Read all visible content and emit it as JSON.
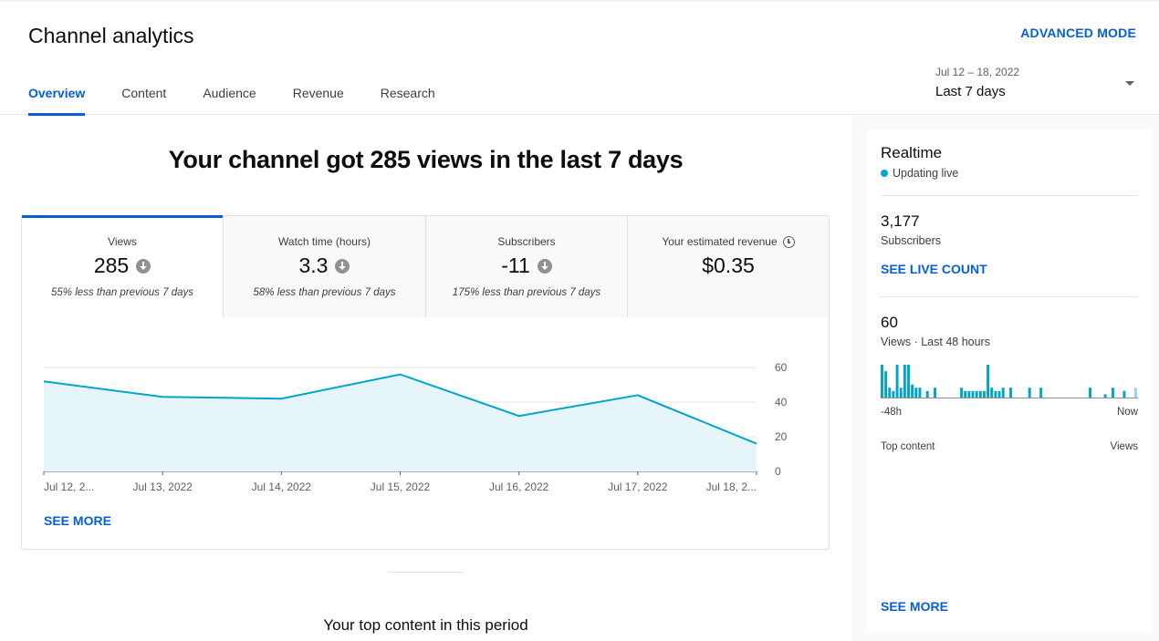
{
  "header": {
    "title": "Channel analytics",
    "advanced_mode": "ADVANCED MODE",
    "tabs": [
      {
        "label": "Overview",
        "active": true
      },
      {
        "label": "Content",
        "active": false
      },
      {
        "label": "Audience",
        "active": false
      },
      {
        "label": "Revenue",
        "active": false
      },
      {
        "label": "Research",
        "active": false
      }
    ],
    "date_range": "Jul 12 – 18, 2022",
    "date_label": "Last 7 days"
  },
  "main": {
    "headline": "Your channel got 285 views in the last 7 days",
    "metrics": [
      {
        "label": "Views",
        "value": "285",
        "sub": "55% less than previous 7 days",
        "trend": "down"
      },
      {
        "label": "Watch time (hours)",
        "value": "3.3",
        "sub": "58% less than previous 7 days",
        "trend": "down"
      },
      {
        "label": "Subscribers",
        "value": "-11",
        "sub": "175% less than previous 7 days",
        "trend": "down"
      },
      {
        "label": "Your estimated revenue",
        "value": "$0.35",
        "sub": "",
        "trend": "none"
      }
    ],
    "see_more": "SEE MORE",
    "top_content_title": "Your top content in this period"
  },
  "chart_data": {
    "type": "area",
    "x": [
      "Jul 12, 2...",
      "Jul 13, 2022",
      "Jul 14, 2022",
      "Jul 15, 2022",
      "Jul 16, 2022",
      "Jul 17, 2022",
      "Jul 18, 2..."
    ],
    "series": [
      {
        "values": [
          52,
          43,
          42,
          56,
          32,
          44,
          16
        ]
      }
    ],
    "yticks": [
      "0",
      "20",
      "40",
      "60"
    ],
    "ylim": [
      0,
      60
    ],
    "grid": true,
    "color": "#00a5c8",
    "fill": "#e6f5fa"
  },
  "realtime": {
    "title": "Realtime",
    "status": "Updating live",
    "subscribers_value": "3,177",
    "subscribers_label": "Subscribers",
    "see_live_count": "SEE LIVE COUNT",
    "views_value": "60",
    "views_label": "Views · Last 48 hours",
    "bars": [
      10,
      8,
      3,
      2,
      10,
      3,
      10,
      10,
      4,
      3,
      3,
      0,
      2,
      0,
      3,
      0,
      0,
      0,
      0,
      0,
      0,
      3,
      2,
      2,
      2,
      2,
      2,
      2,
      10,
      3,
      2,
      2,
      3,
      0,
      3,
      0,
      0,
      0,
      0,
      3,
      0,
      0,
      3,
      0,
      0,
      0,
      0,
      0,
      0,
      0,
      0,
      0,
      0,
      0,
      0,
      3,
      0,
      0,
      0,
      1,
      0,
      3,
      0,
      0,
      2,
      0,
      0,
      3
    ],
    "axis_start": "-48h",
    "axis_end": "Now",
    "top_content_label": "Top content",
    "top_content_metric": "Views",
    "see_more": "SEE MORE"
  }
}
